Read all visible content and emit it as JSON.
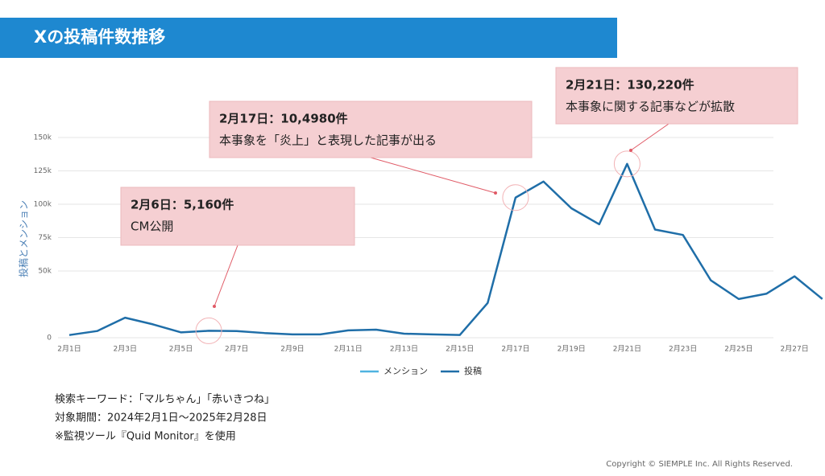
{
  "header": {
    "title": "Xの投稿件数推移"
  },
  "chart_data": {
    "type": "line",
    "y_label": "投稿とメンション",
    "categories": [
      "2月1日",
      null,
      "2月3日",
      null,
      "2月5日",
      null,
      "2月7日",
      null,
      "2月9日",
      null,
      "2月11日",
      null,
      "2月13日",
      null,
      "2月15日",
      null,
      "2月17日",
      null,
      "2月19日",
      null,
      "2月21日",
      null,
      "2月23日",
      null,
      "2月25日",
      null,
      "2月27日",
      null
    ],
    "series": [
      {
        "name": "投稿",
        "color": "#1f6ea8",
        "values": [
          2000,
          5000,
          15000,
          10000,
          4000,
          5160,
          5000,
          3500,
          2500,
          2500,
          5500,
          6000,
          3000,
          2500,
          2000,
          26000,
          104980,
          117000,
          97000,
          85000,
          130220,
          81000,
          77000,
          43000,
          29000,
          33000,
          46000,
          29000
        ]
      }
    ],
    "legend": [
      {
        "name": "メンション",
        "color": "#4fb3e0"
      },
      {
        "name": "投稿",
        "color": "#1f6ea8"
      }
    ],
    "ylim": [
      0,
      150000
    ],
    "yticks": [
      0,
      {
        "value": 50000,
        "label": "50k"
      },
      {
        "value": 75000,
        "label": "75k"
      },
      {
        "value": 100000,
        "label": "100k"
      },
      {
        "value": 125000,
        "label": "125k"
      },
      {
        "value": 150000,
        "label": "150k"
      }
    ],
    "grid": true,
    "annotations": [
      {
        "lines": [
          "2月6日：5,160件",
          "CM公開"
        ]
      },
      {
        "lines": [
          "2月17日：10,4980件",
          "本事象を「炎上」と表現した記事が出る"
        ]
      },
      {
        "lines": [
          "2月21日：130,220件",
          "本事象に関する記事などが拡散"
        ]
      }
    ]
  },
  "notes": [
    "検索キーワード：「マルちゃん」「赤いきつね」",
    "対象期間：2024年2月1日～2025年2月28日",
    "※監視ツール『Quid Monitor』を使用"
  ],
  "footer": {
    "copyright": "Copyright © SIEMPLE Inc. All Rights Reserved."
  }
}
